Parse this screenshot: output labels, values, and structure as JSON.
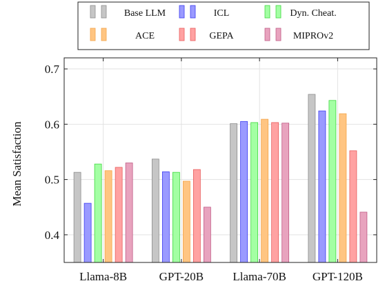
{
  "chart_data": {
    "type": "bar",
    "ylabel": "Mean Satisfaction",
    "xlabel": "",
    "ylim": [
      0.35,
      0.72
    ],
    "yticks": [
      0.4,
      0.5,
      0.6,
      0.7
    ],
    "ytick_labels": [
      "0.4",
      "0.5",
      "0.6",
      "0.7"
    ],
    "grid": true,
    "legend_position": "top-center",
    "categories": [
      "Llama-8B",
      "GPT-20B",
      "Llama-70B",
      "GPT-120B"
    ],
    "series": [
      {
        "name": "Base LLM",
        "color": "#c6c6c6",
        "edge": "#8c8c8c",
        "values": [
          0.513,
          0.537,
          0.601,
          0.654
        ]
      },
      {
        "name": "ICL",
        "color": "#9a9aff",
        "edge": "#3d3df0",
        "values": [
          0.457,
          0.514,
          0.605,
          0.624
        ]
      },
      {
        "name": "Dyn. Cheat.",
        "color": "#a3ffa3",
        "edge": "#3fd83f",
        "values": [
          0.528,
          0.513,
          0.603,
          0.643
        ]
      },
      {
        "name": "ACE",
        "color": "#ffc582",
        "edge": "#f3a44a",
        "values": [
          0.516,
          0.497,
          0.609,
          0.619
        ]
      },
      {
        "name": "GEPA",
        "color": "#ffa2a2",
        "edge": "#e85d5d",
        "values": [
          0.522,
          0.518,
          0.603,
          0.552
        ]
      },
      {
        "name": "MIPROv2",
        "color": "#e8a3be",
        "edge": "#c05c86",
        "values": [
          0.53,
          0.45,
          0.602,
          0.441
        ]
      }
    ]
  }
}
